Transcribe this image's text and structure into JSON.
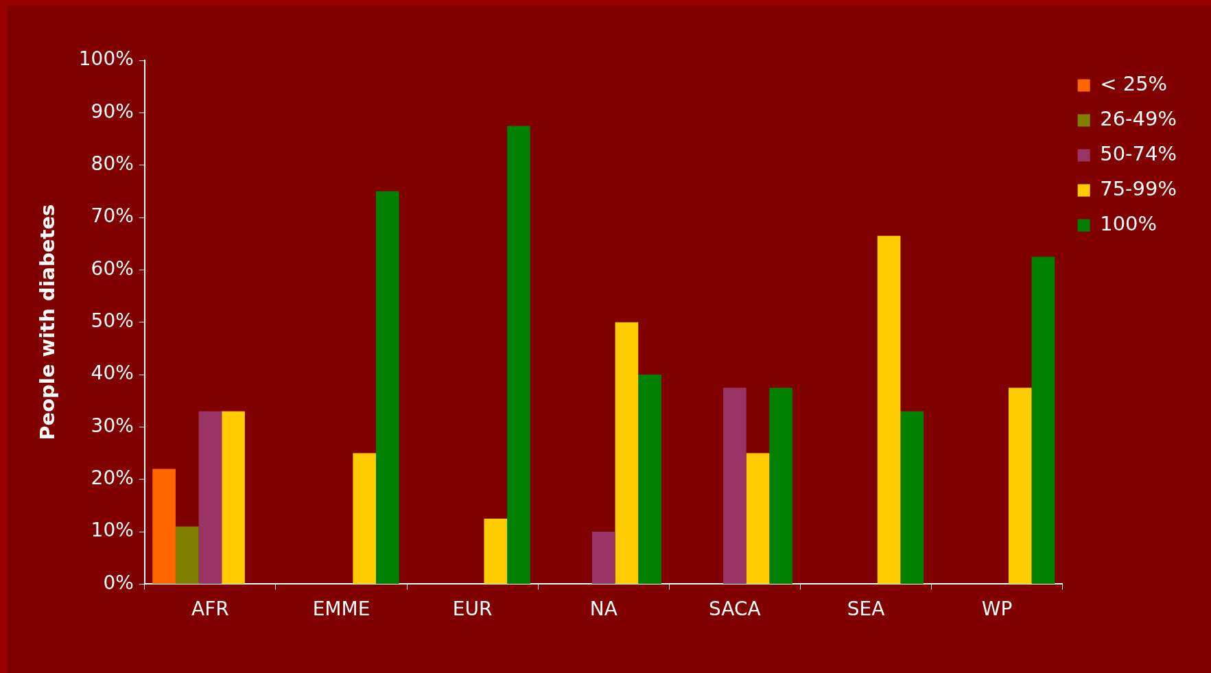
{
  "chart_data": {
    "type": "bar",
    "ylabel": "People with diabetes",
    "categories": [
      "AFR",
      "EMME",
      "EUR",
      "NA",
      "SACA",
      "SEA",
      "WP"
    ],
    "series": [
      {
        "name": "< 25%",
        "color": "#ff6600",
        "values": [
          22,
          0,
          0,
          0,
          0,
          0,
          0
        ]
      },
      {
        "name": "26-49%",
        "color": "#808000",
        "values": [
          11,
          0,
          0,
          0,
          0,
          0,
          0
        ]
      },
      {
        "name": "50-74%",
        "color": "#993366",
        "values": [
          33,
          0,
          0,
          10,
          37.5,
          0,
          0
        ]
      },
      {
        "name": "75-99%",
        "color": "#ffcc00",
        "values": [
          33,
          25,
          12.5,
          50,
          25,
          66.5,
          37.5
        ]
      },
      {
        "name": "100%",
        "color": "#008000",
        "values": [
          0,
          75,
          87.5,
          40,
          37.5,
          33,
          62.5
        ]
      }
    ],
    "ylim": [
      0,
      100
    ],
    "yticks": [
      {
        "value": 0,
        "label": "0%"
      },
      {
        "value": 10,
        "label": "10%"
      },
      {
        "value": 20,
        "label": "20%"
      },
      {
        "value": 30,
        "label": "30%"
      },
      {
        "value": 40,
        "label": "40%"
      },
      {
        "value": 50,
        "label": "50%"
      },
      {
        "value": 60,
        "label": "60%"
      },
      {
        "value": 70,
        "label": "70%"
      },
      {
        "value": 80,
        "label": "80%"
      },
      {
        "value": 90,
        "label": "90%"
      },
      {
        "value": 100,
        "label": "100%"
      }
    ],
    "grid": false,
    "legend": "top right"
  }
}
